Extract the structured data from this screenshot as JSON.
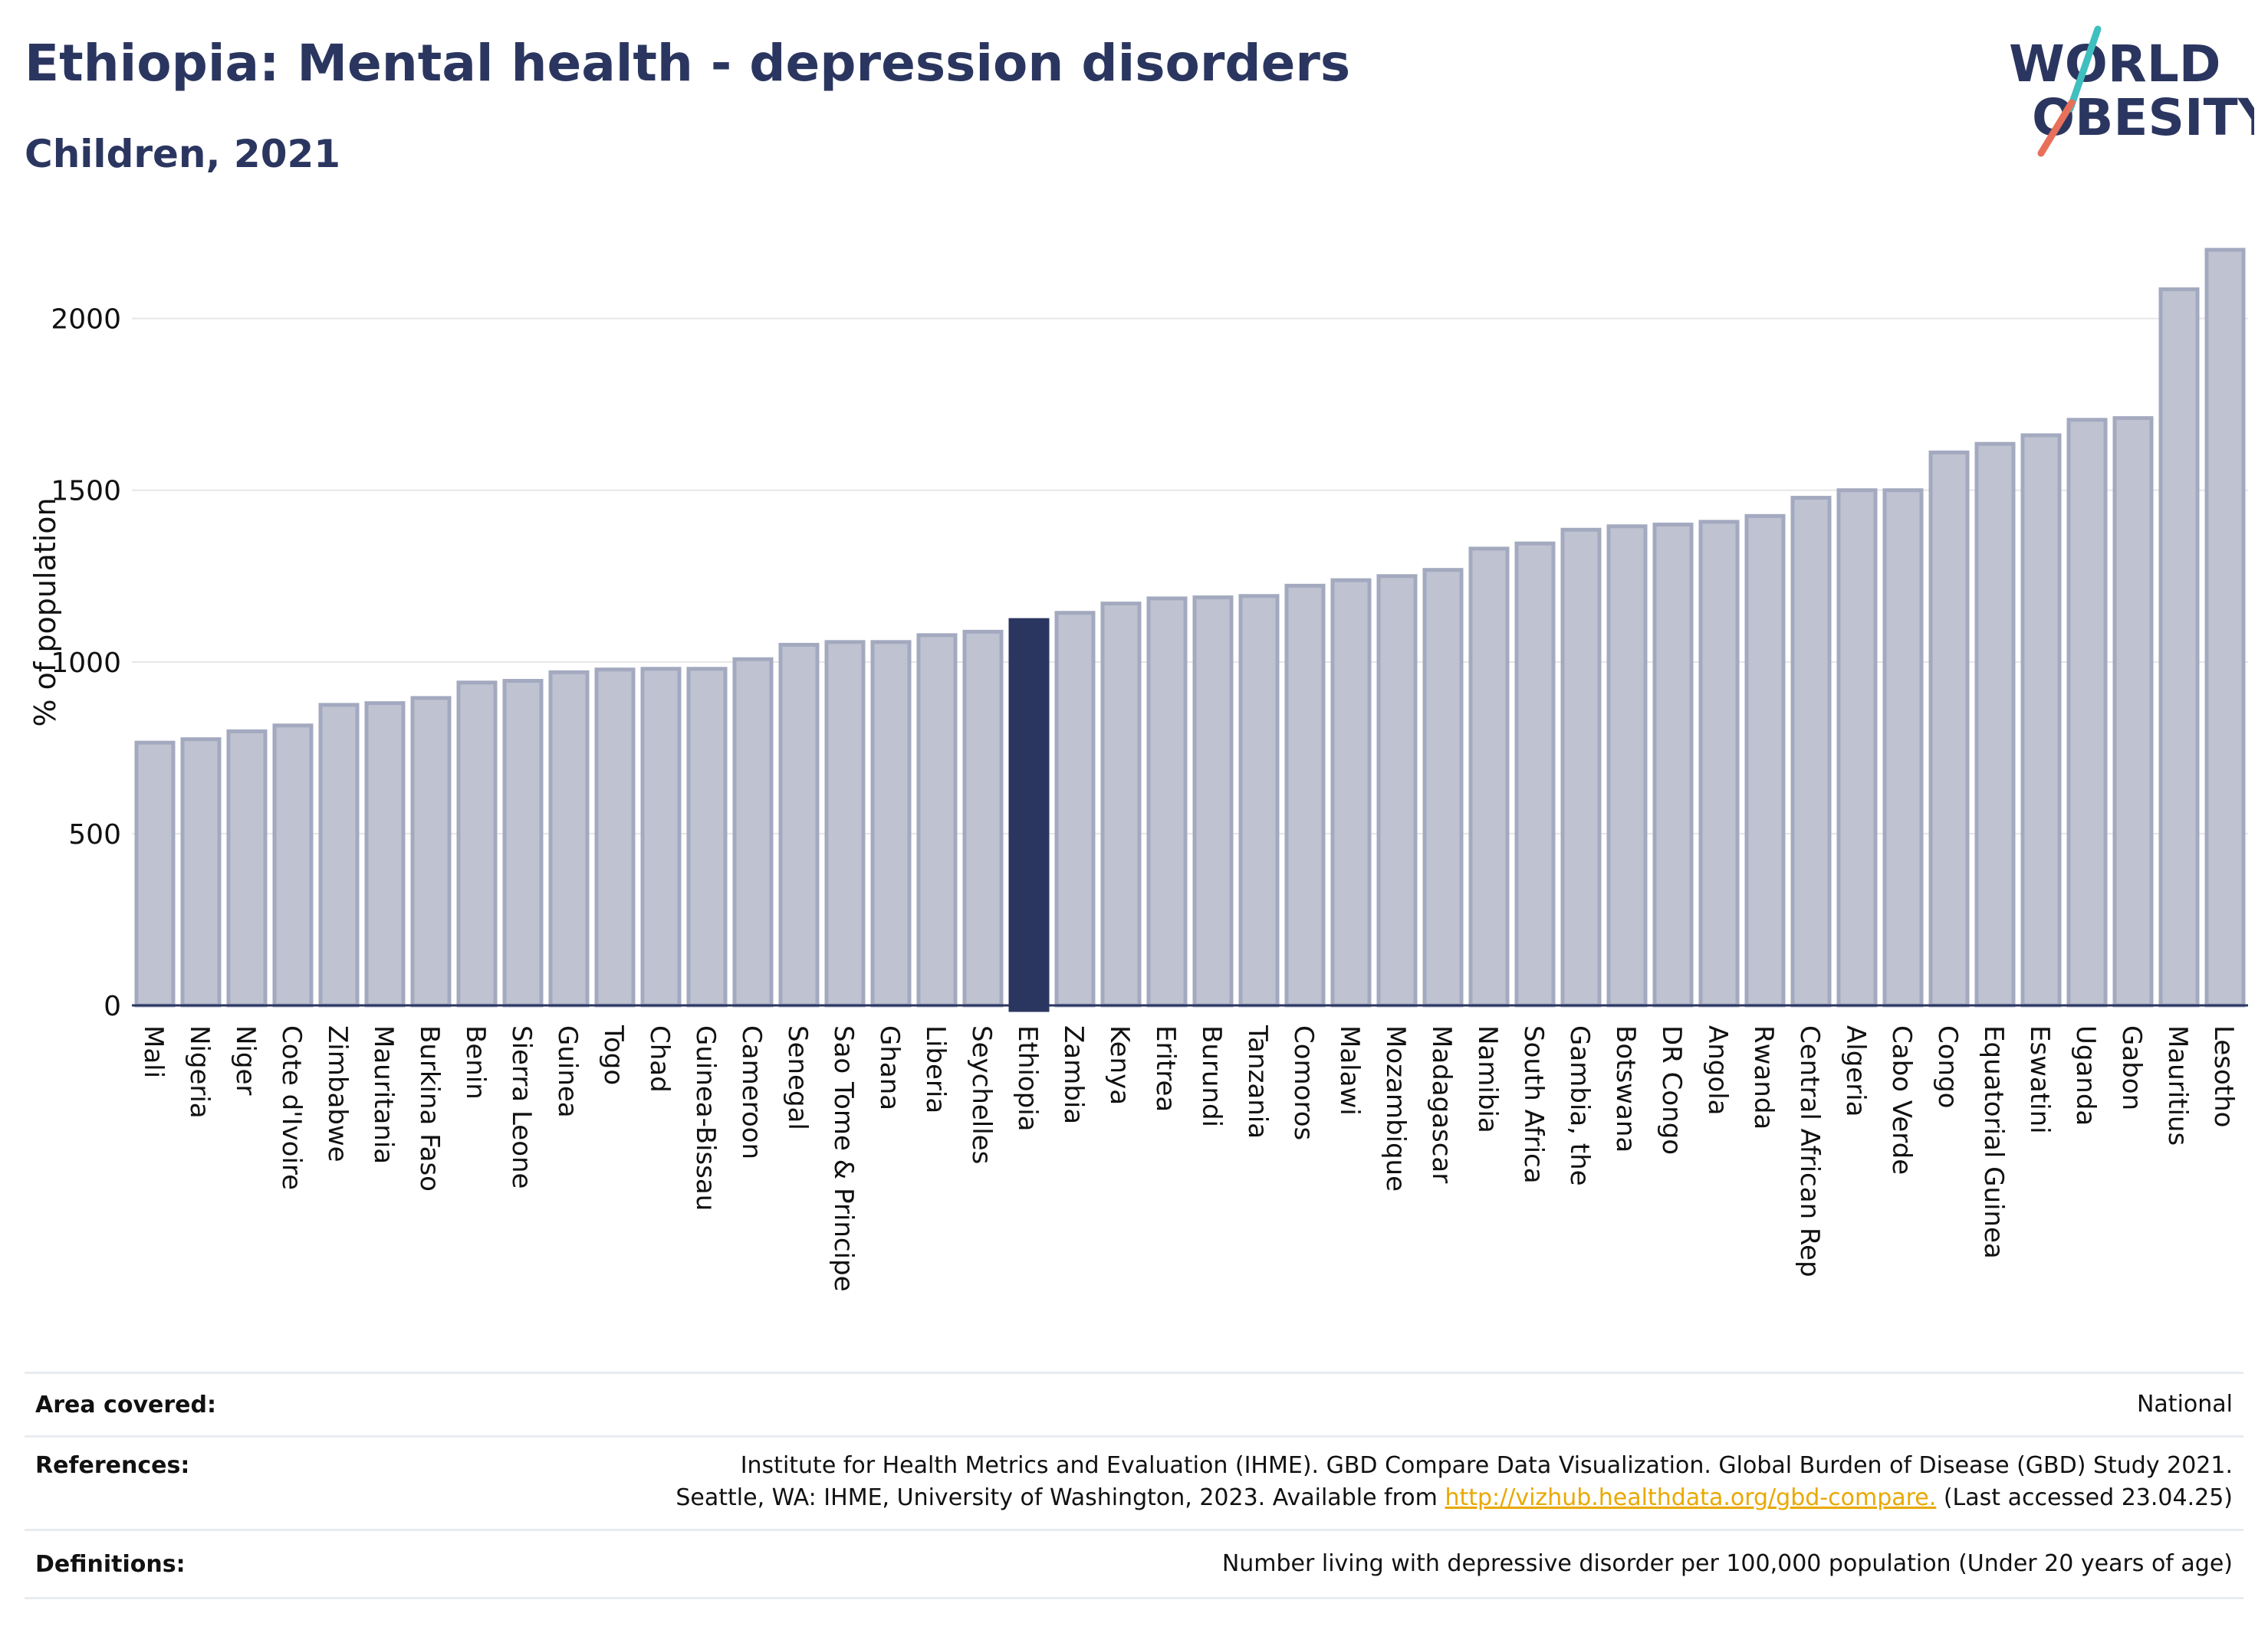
{
  "header": {
    "title": "Ethiopia: Mental health - depression disorders",
    "subtitle": "Children, 2021"
  },
  "logo": {
    "line1": "WORLD",
    "line2": "OBESITY",
    "accent_teal": "#3fbfbf",
    "accent_coral": "#e8705a",
    "text_color": "#2b3660"
  },
  "colors": {
    "bar_default": "#bfc3d1",
    "bar_border": "#a3a9bf",
    "bar_highlight": "#2b3660",
    "text_dark": "#2b3660",
    "grid": "#e6e6e6"
  },
  "chart_data": {
    "type": "bar",
    "title": "Ethiopia: Mental health - depression disorders",
    "subtitle": "Children, 2021",
    "xlabel": "",
    "ylabel": "% of population",
    "ylim": [
      0,
      2200
    ],
    "yticks": [
      0,
      500,
      1000,
      1500,
      2000
    ],
    "grid": true,
    "highlight": "Ethiopia",
    "categories": [
      "Mali",
      "Nigeria",
      "Niger",
      "Cote d'Ivoire",
      "Zimbabwe",
      "Mauritania",
      "Burkina Faso",
      "Benin",
      "Sierra Leone",
      "Guinea",
      "Togo",
      "Chad",
      "Guinea-Bissau",
      "Cameroon",
      "Senegal",
      "Sao Tome & Principe",
      "Ghana",
      "Liberia",
      "Seychelles",
      "Ethiopia",
      "Zambia",
      "Kenya",
      "Eritrea",
      "Burundi",
      "Tanzania",
      "Comoros",
      "Malawi",
      "Mozambique",
      "Madagascar",
      "Namibia",
      "South Africa",
      "Gambia, the",
      "Botswana",
      "DR Congo",
      "Angola",
      "Rwanda",
      "Central African Rep",
      "Algeria",
      "Cabo Verde",
      "Congo",
      "Equatorial Guinea",
      "Eswatini",
      "Uganda",
      "Gabon",
      "Mauritius",
      "Lesotho"
    ],
    "values": [
      765,
      775,
      798,
      815,
      875,
      880,
      895,
      940,
      945,
      970,
      978,
      980,
      980,
      1008,
      1050,
      1058,
      1058,
      1078,
      1088,
      1122,
      1143,
      1170,
      1185,
      1188,
      1192,
      1222,
      1238,
      1250,
      1268,
      1330,
      1345,
      1385,
      1395,
      1400,
      1408,
      1425,
      1478,
      1500,
      1500,
      1610,
      1635,
      1660,
      1705,
      1710,
      2085,
      2200
    ]
  },
  "footer": {
    "area_label": "Area covered:",
    "area_value": "National",
    "references_label": "References:",
    "references_line1": "Institute for Health Metrics and Evaluation (IHME). GBD Compare Data Visualization. Global Burden of Disease (GBD) Study 2021.",
    "references_line2_pre": "Seattle, WA: IHME, University of Washington, 2023. Available from",
    "references_link": "http://vizhub.healthdata.org/gbd-compare.",
    "references_line2_post": "(Last accessed 23.04.25)",
    "definitions_label": "Definitions:",
    "definitions_value": "Number living with depressive disorder per 100,000 population (Under 20 years of age)"
  }
}
